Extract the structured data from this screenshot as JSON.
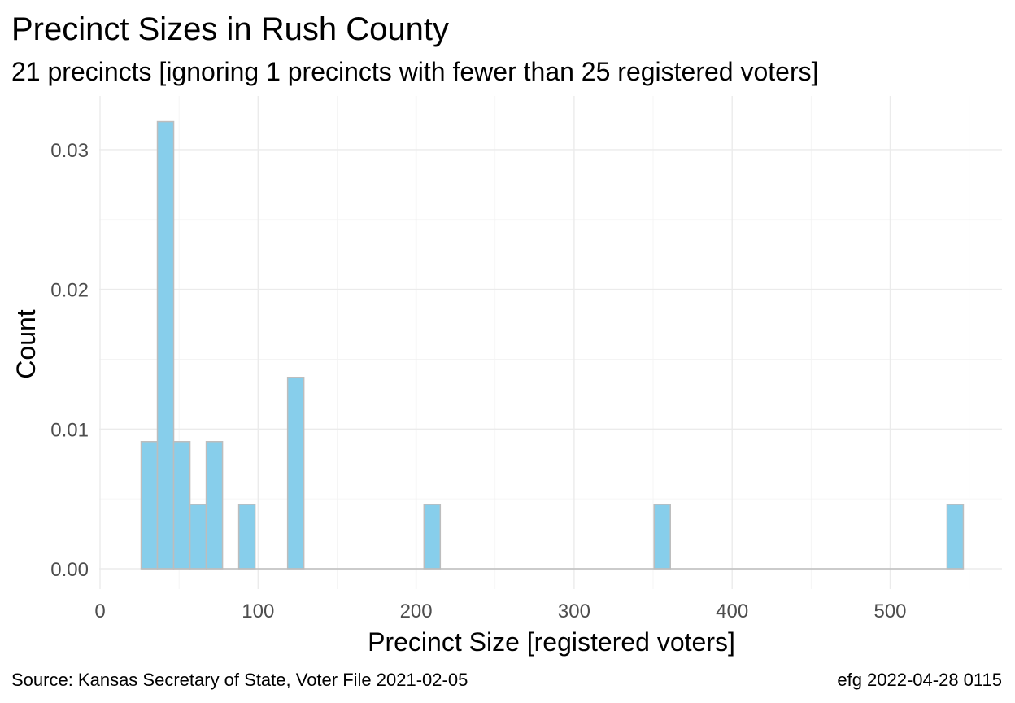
{
  "chart_data": {
    "type": "bar",
    "title": "Precinct Sizes in Rush County",
    "subtitle": "21 precincts [ignoring 1 precincts with fewer than 25 registered voters]",
    "xlabel": "Precinct Size [registered voters]",
    "ylabel": "Count",
    "xlim": [
      0,
      560
    ],
    "ylim": [
      0,
      0.032
    ],
    "x_ticks": [
      0,
      100,
      200,
      300,
      400,
      500
    ],
    "y_ticks": [
      0.0,
      0.01,
      0.02,
      0.03
    ],
    "x_tick_labels": [
      "0",
      "100",
      "200",
      "300",
      "400",
      "500"
    ],
    "y_tick_labels": [
      "0.00",
      "0.01",
      "0.02",
      "0.03"
    ],
    "grid": true,
    "legend": "none",
    "bar_fill": "#87ceeb",
    "bar_outline": "#bdbdbd",
    "bin_width": 10.3,
    "bins": [
      {
        "x_start": 26.0,
        "x_end": 36.3,
        "value": 0.0091
      },
      {
        "x_start": 36.3,
        "x_end": 46.6,
        "value": 0.032
      },
      {
        "x_start": 46.6,
        "x_end": 56.9,
        "value": 0.0091
      },
      {
        "x_start": 56.9,
        "x_end": 67.2,
        "value": 0.0046
      },
      {
        "x_start": 67.2,
        "x_end": 77.5,
        "value": 0.0091
      },
      {
        "x_start": 77.5,
        "x_end": 87.8,
        "value": 0.0
      },
      {
        "x_start": 87.8,
        "x_end": 98.1,
        "value": 0.0046
      },
      {
        "x_start": 98.1,
        "x_end": 108.4,
        "value": 0.0
      },
      {
        "x_start": 108.4,
        "x_end": 118.7,
        "value": 0.0
      },
      {
        "x_start": 118.7,
        "x_end": 129.0,
        "value": 0.0137
      },
      {
        "x_start": 205.0,
        "x_end": 215.3,
        "value": 0.0046
      },
      {
        "x_start": 350.6,
        "x_end": 360.9,
        "value": 0.0046
      },
      {
        "x_start": 536.0,
        "x_end": 546.3,
        "value": 0.0046
      }
    ],
    "baseline": [
      26.0,
      546.3
    ]
  },
  "caption": {
    "left": "Source:  Kansas Secretary of State, Voter File  2021-02-05",
    "right": "efg 2022-04-28 0115"
  }
}
